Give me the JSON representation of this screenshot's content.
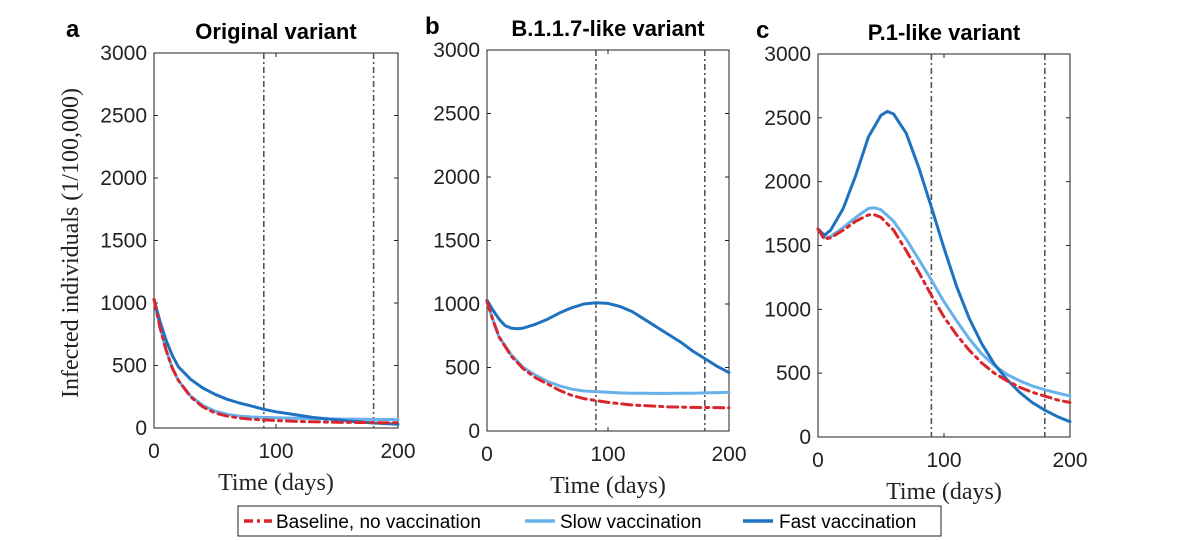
{
  "chart_data": [
    {
      "type": "line",
      "panel_label": "a",
      "title": "Original variant",
      "xlabel": "Time (days)",
      "ylabel": "Infected individuals (1/100,000)",
      "xlim": [
        0,
        200
      ],
      "ylim": [
        0,
        3000
      ],
      "xticks": [
        0,
        100,
        200
      ],
      "yticks": [
        0,
        500,
        1000,
        1500,
        2000,
        2500,
        3000
      ],
      "vlines": [
        90,
        180
      ],
      "series": [
        {
          "key": "baseline",
          "x": [
            0,
            5,
            10,
            15,
            20,
            30,
            40,
            50,
            60,
            70,
            80,
            90,
            100,
            110,
            120,
            130,
            140,
            150,
            160,
            170,
            180,
            190,
            200
          ],
          "y": [
            1030,
            800,
            620,
            480,
            380,
            250,
            170,
            120,
            95,
            80,
            70,
            65,
            60,
            56,
            52,
            50,
            48,
            46,
            45,
            44,
            43,
            42,
            42
          ]
        },
        {
          "key": "slow",
          "x": [
            0,
            5,
            10,
            15,
            20,
            30,
            40,
            50,
            60,
            70,
            80,
            90,
            100,
            110,
            120,
            130,
            140,
            150,
            160,
            170,
            180,
            190,
            200
          ],
          "y": [
            1030,
            800,
            620,
            480,
            380,
            255,
            180,
            135,
            110,
            95,
            88,
            85,
            82,
            80,
            77,
            75,
            73,
            72,
            71,
            70,
            69,
            68,
            68
          ]
        },
        {
          "key": "fast",
          "x": [
            0,
            5,
            10,
            15,
            20,
            30,
            40,
            50,
            60,
            70,
            80,
            90,
            100,
            110,
            120,
            130,
            140,
            150,
            160,
            170,
            180,
            190,
            200
          ],
          "y": [
            1030,
            850,
            700,
            580,
            490,
            390,
            320,
            270,
            230,
            200,
            175,
            150,
            130,
            115,
            100,
            85,
            75,
            65,
            55,
            48,
            40,
            35,
            30
          ]
        }
      ]
    },
    {
      "type": "line",
      "panel_label": "b",
      "title": "B.1.1.7-like variant",
      "xlabel": "Time (days)",
      "ylabel": "",
      "xlim": [
        0,
        200
      ],
      "ylim": [
        0,
        3000
      ],
      "xticks": [
        0,
        100,
        200
      ],
      "yticks": [
        0,
        500,
        1000,
        1500,
        2000,
        2500,
        3000
      ],
      "vlines": [
        90,
        180
      ],
      "series": [
        {
          "key": "baseline",
          "x": [
            0,
            5,
            10,
            20,
            30,
            40,
            50,
            60,
            70,
            80,
            90,
            100,
            110,
            120,
            130,
            140,
            150,
            160,
            170,
            180,
            190,
            200
          ],
          "y": [
            1020,
            870,
            740,
            590,
            490,
            420,
            370,
            320,
            280,
            255,
            240,
            225,
            215,
            205,
            200,
            195,
            190,
            188,
            186,
            185,
            184,
            183
          ]
        },
        {
          "key": "slow",
          "x": [
            0,
            5,
            10,
            20,
            30,
            40,
            50,
            60,
            70,
            80,
            90,
            100,
            110,
            120,
            130,
            140,
            150,
            160,
            170,
            180,
            190,
            200
          ],
          "y": [
            1020,
            870,
            740,
            600,
            500,
            440,
            390,
            355,
            330,
            315,
            310,
            305,
            300,
            298,
            297,
            296,
            296,
            297,
            298,
            300,
            302,
            305
          ]
        },
        {
          "key": "fast",
          "x": [
            0,
            5,
            10,
            15,
            20,
            25,
            30,
            40,
            50,
            60,
            70,
            80,
            90,
            100,
            110,
            120,
            130,
            140,
            150,
            160,
            170,
            180,
            190,
            200
          ],
          "y": [
            1030,
            950,
            880,
            830,
            810,
            805,
            810,
            840,
            880,
            930,
            970,
            1000,
            1010,
            1005,
            980,
            940,
            880,
            820,
            760,
            700,
            630,
            570,
            510,
            460
          ]
        }
      ]
    },
    {
      "type": "line",
      "panel_label": "c",
      "title": "P.1-like variant",
      "xlabel": "Time (days)",
      "ylabel": "",
      "xlim": [
        0,
        200
      ],
      "ylim": [
        0,
        3000
      ],
      "xticks": [
        0,
        100,
        200
      ],
      "yticks": [
        0,
        500,
        1000,
        1500,
        2000,
        2500,
        3000
      ],
      "vlines": [
        90,
        180
      ],
      "series": [
        {
          "key": "baseline",
          "x": [
            0,
            5,
            10,
            20,
            30,
            40,
            45,
            50,
            60,
            70,
            80,
            90,
            100,
            110,
            120,
            130,
            140,
            150,
            160,
            170,
            180,
            190,
            200
          ],
          "y": [
            1630,
            1550,
            1560,
            1620,
            1690,
            1740,
            1740,
            1720,
            1620,
            1460,
            1290,
            1110,
            940,
            800,
            680,
            580,
            500,
            440,
            390,
            350,
            320,
            290,
            270
          ]
        },
        {
          "key": "slow",
          "x": [
            0,
            5,
            10,
            20,
            30,
            40,
            45,
            50,
            60,
            70,
            80,
            90,
            100,
            110,
            120,
            130,
            140,
            150,
            160,
            170,
            180,
            190,
            200
          ],
          "y": [
            1630,
            1560,
            1570,
            1640,
            1720,
            1790,
            1795,
            1780,
            1690,
            1550,
            1390,
            1230,
            1060,
            910,
            770,
            650,
            560,
            490,
            440,
            400,
            370,
            345,
            320
          ]
        },
        {
          "key": "fast",
          "x": [
            0,
            5,
            10,
            20,
            30,
            40,
            50,
            55,
            60,
            70,
            80,
            90,
            100,
            110,
            120,
            130,
            140,
            150,
            160,
            170,
            180,
            190,
            200
          ],
          "y": [
            1630,
            1580,
            1620,
            1790,
            2050,
            2350,
            2520,
            2550,
            2530,
            2380,
            2110,
            1800,
            1480,
            1180,
            930,
            730,
            570,
            450,
            350,
            270,
            210,
            160,
            120
          ]
        }
      ]
    }
  ],
  "legend": [
    {
      "key": "baseline",
      "label": "Baseline, no vaccination",
      "color": "#d8262d",
      "dash": "dashdot"
    },
    {
      "key": "slow",
      "label": "Slow vaccination",
      "color": "#67b2ea",
      "dash": "solid"
    },
    {
      "key": "fast",
      "label": "Fast vaccination",
      "color": "#1f72bf",
      "dash": "solid"
    }
  ],
  "colors": {
    "baseline": "#d8262d",
    "slow": "#67b2ea",
    "fast": "#1f72bf",
    "vline": "#555555"
  }
}
